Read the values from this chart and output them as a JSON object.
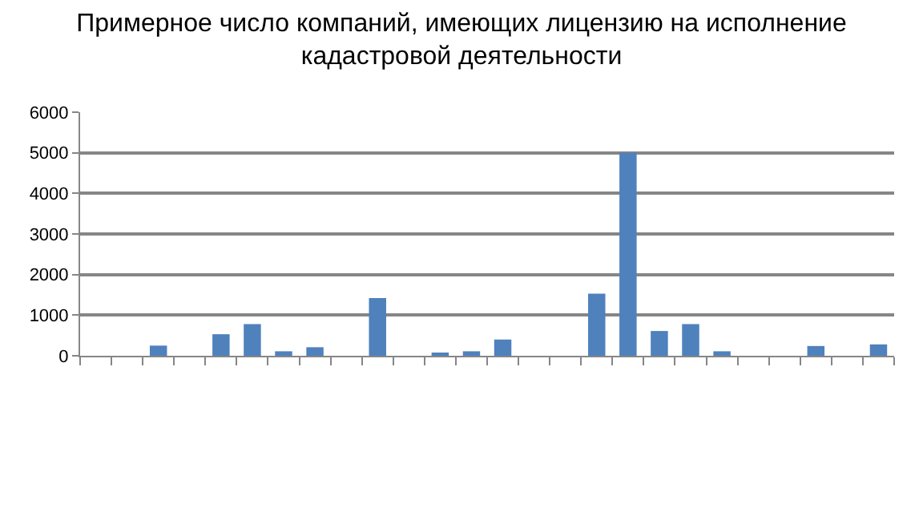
{
  "chart_data": {
    "type": "bar",
    "title": "Примерное число компаний, имеющих лицензию на исполнение кадастровой деятельности",
    "categories": [
      null,
      null,
      null,
      null,
      null,
      null,
      null,
      null,
      null,
      null,
      null,
      null,
      null,
      null,
      null,
      null,
      null,
      null,
      null,
      null,
      null,
      null,
      null,
      null,
      null,
      null
    ],
    "values": [
      0,
      0,
      250,
      0,
      530,
      780,
      110,
      210,
      0,
      1420,
      0,
      70,
      110,
      400,
      0,
      0,
      1530,
      5000,
      610,
      780,
      110,
      0,
      0,
      240,
      0,
      280
    ],
    "color": "#4f81bd",
    "ylim": [
      0,
      6000
    ],
    "yticks": [
      0,
      1000,
      2000,
      3000,
      4000,
      5000,
      6000
    ],
    "grid": "y"
  }
}
